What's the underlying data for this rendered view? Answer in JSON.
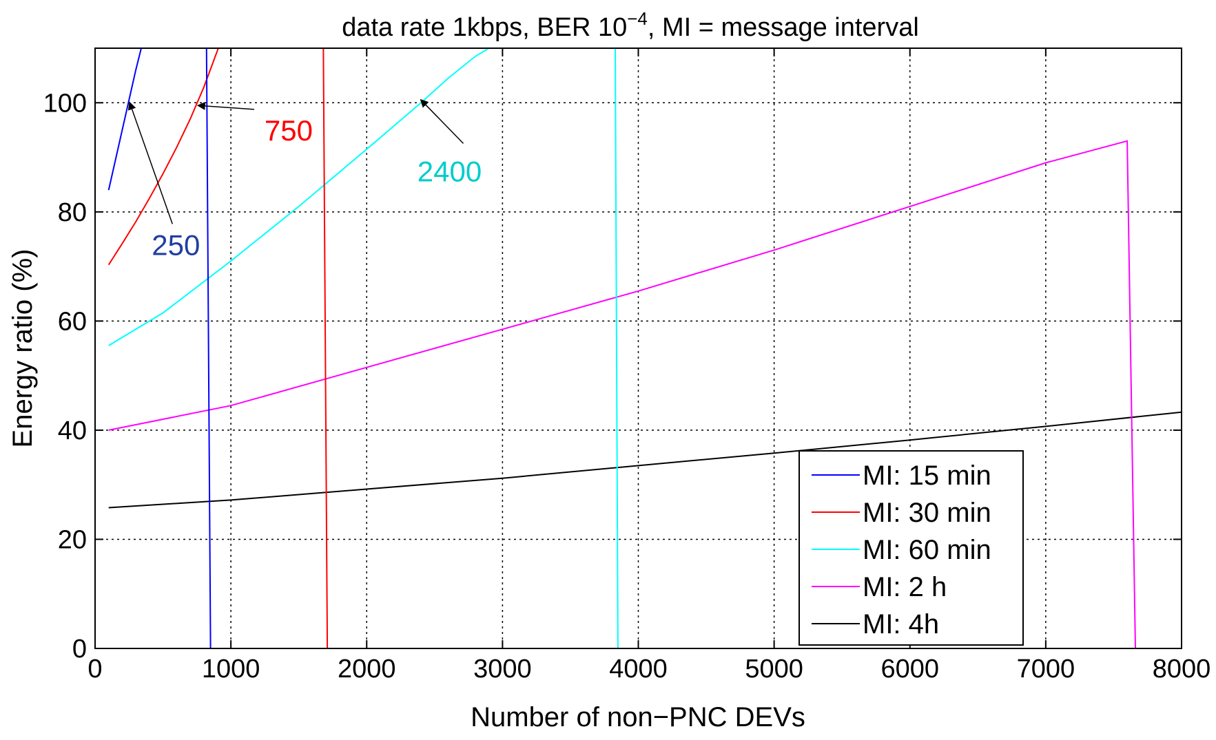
{
  "chart_data": {
    "type": "line",
    "title": "data rate 1kbps, BER 10",
    "title_exponent": "−4",
    "title_suffix": ", MI = message interval",
    "xlabel": "Number of non−PNC DEVs",
    "ylabel": "Energy ratio (%)",
    "xlim": [
      0,
      8000
    ],
    "ylim": [
      0,
      110
    ],
    "xticks": [
      0,
      1000,
      2000,
      3000,
      4000,
      5000,
      6000,
      7000,
      8000
    ],
    "yticks": [
      0,
      20,
      40,
      60,
      80,
      100
    ],
    "grid": true,
    "legend_position": "bottom-right",
    "series": [
      {
        "name": "MI: 15 min",
        "color": "#0000ff",
        "x": [
          100,
          200,
          300,
          350,
          370,
          820,
          850,
          8000
        ],
        "y": [
          84,
          95,
          106,
          111,
          113,
          113,
          0,
          0
        ]
      },
      {
        "name": "MI: 30 min",
        "color": "#ff0000",
        "x": [
          100,
          200,
          300,
          400,
          500,
          600,
          700,
          800,
          900,
          950,
          1680,
          1710,
          8000
        ],
        "y": [
          70.3,
          74.2,
          78.2,
          82.5,
          87,
          91.8,
          97,
          102.8,
          109.5,
          113,
          113,
          0,
          0
        ]
      },
      {
        "name": "MI: 60 min",
        "color": "#00ffff",
        "x": [
          100,
          500,
          1000,
          1500,
          2000,
          2400,
          2600,
          2800,
          2900,
          3830,
          3850,
          8000
        ],
        "y": [
          55.5,
          61.5,
          71,
          81,
          91.5,
          100,
          104.5,
          108.5,
          110,
          110,
          0,
          0
        ]
      },
      {
        "name": "MI: 2 h",
        "color": "#ff00ff",
        "x": [
          100,
          1000,
          2000,
          3000,
          4000,
          5000,
          6000,
          7000,
          7600,
          7660,
          8000
        ],
        "y": [
          40,
          44.5,
          51.5,
          58.5,
          65.5,
          73,
          81,
          89,
          93,
          0,
          0
        ]
      },
      {
        "name": "MI: 4h",
        "color": "#000000",
        "x": [
          100,
          1000,
          2000,
          3000,
          4000,
          5000,
          6000,
          7000,
          8000
        ],
        "y": [
          25.8,
          27.2,
          29.2,
          31.2,
          33.5,
          35.8,
          38.2,
          40.7,
          43.3
        ]
      }
    ],
    "annotations": [
      {
        "text": "250",
        "color": "#1f3fa0",
        "text_x": 595,
        "text_y": 74,
        "arrow_x": 255,
        "arrow_y": 100
      },
      {
        "text": "750",
        "color": "#ff0000",
        "text_x": 1425,
        "text_y": 95,
        "arrow_x": 760,
        "arrow_y": 99.5
      },
      {
        "text": "2400",
        "color": "#00cccc",
        "text_x": 2610,
        "text_y": 87.5,
        "arrow_x": 2400,
        "arrow_y": 100.5
      }
    ]
  }
}
